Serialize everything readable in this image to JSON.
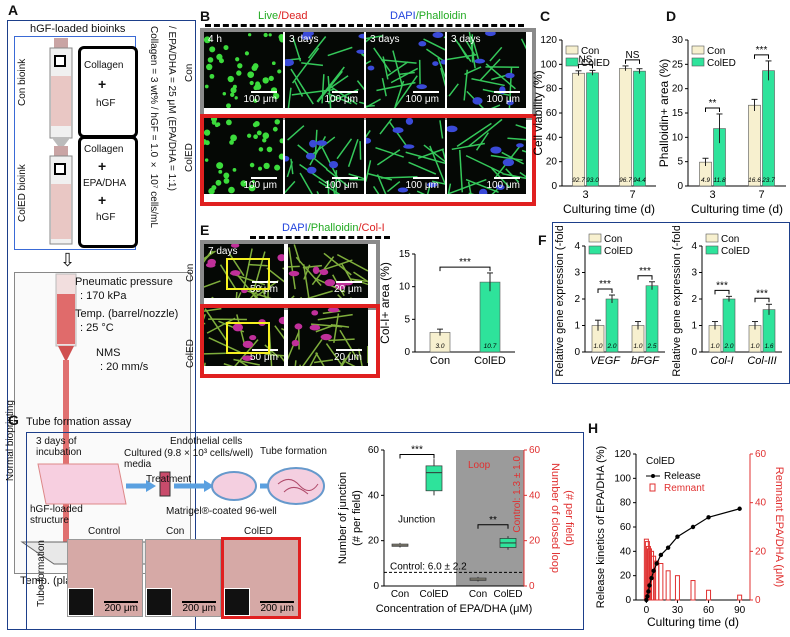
{
  "panels": {
    "A": {
      "label": "A",
      "box_title": "hGF-loaded bioinks",
      "con_bioink": "Con bioink",
      "coled_bioink": "ColED bioink",
      "collagen": "Collagen",
      "hgf": "hGF",
      "epa_dha": "EPA/DHA",
      "plus": "+",
      "vertical_text_1": "Collagen = 3 wt% / hGF = 1.0 × 10⁷ cells/mL",
      "vertical_text_2": "/ EPA/DHA = 25 μM (EPA/DHA = 1:1)",
      "normal_bioprinting": "Normal bioprinting",
      "pneumatic": "Pneumatic pressure",
      "pneumatic_val": ": 170 kPa",
      "temp_barrel": "Temp. (barrel/nozzle)",
      "temp_barrel_val": ": 25 °C",
      "nms": "NMS",
      "nms_val": ": 20 mm/s",
      "temp_plate": "Temp. (plate) : 35-38 °C"
    },
    "B": {
      "label": "B",
      "header_live": "Live",
      "header_dead": "/Dead",
      "header_dapi": "DAPI",
      "header_phalloidin": "/Phalloidin",
      "row_con": "Con",
      "row_coled": "ColED",
      "times": [
        "4 h",
        "3 days",
        "3 days",
        "3 days"
      ],
      "scale": "100 μm"
    },
    "C": {
      "label": "C",
      "legend": [
        "Con",
        "ColED"
      ],
      "ylabel": "Cell viability (%)",
      "xlabel": "Culturing time (d)",
      "sig": [
        "NS",
        "NS"
      ]
    },
    "D": {
      "label": "D",
      "legend": [
        "Con",
        "ColED"
      ],
      "ylabel": "Phalloidin+ area (%)",
      "xlabel": "Culturing time (d)",
      "sig": [
        "**",
        "***"
      ]
    },
    "E": {
      "label": "E",
      "header_dapi": "DAPI",
      "header_phalloidin": "/Phalloidin",
      "header_col": "/Col-I",
      "time": "7 days",
      "row_con": "Con",
      "row_coled": "ColED",
      "scale_50": "50 μm",
      "scale_20": "20 μm",
      "ylabel": "Col-I+ area (%)",
      "sig": "***"
    },
    "F": {
      "label": "F",
      "legend": [
        "Con",
        "ColED"
      ],
      "ylabel": "Relative gene expression (-fold)",
      "sig": "***"
    },
    "G": {
      "label": "G",
      "title": "Tube formation assay",
      "step1": "3 days of incubation",
      "step2": "Cultured media",
      "step3": "Endothelial cells",
      "step3b": "(9.8 × 10³ cells/well)",
      "treatment": "Treatment",
      "tube_formation": "Tube formation",
      "structure": "hGF-loaded structure",
      "matrigel": "Matrigel®-coated 96-well",
      "photo_labels": [
        "Control",
        "Con",
        "ColED"
      ],
      "tube_side": "Tube formation",
      "scale": "200 μm",
      "ylabel_left": "Number of junction",
      "ylabel_left2": "(# per field)",
      "ylabel_right": "Number of closed loop",
      "ylabel_right2": "(# per field)",
      "junction": "Junction",
      "loop": "Loop",
      "control_junction": "Control: 6.0 ± 2.2",
      "control_loop": "Control: 1.3 ± 1.0",
      "xlabel": "Concentration of EPA/DHA (μM)",
      "sig1": "***",
      "sig2": "**"
    },
    "H": {
      "label": "H",
      "series_label": "ColED",
      "legend": [
        "Release",
        "Remnant"
      ],
      "ylabel_left": "Release kinetics of EPA/DHA (%)",
      "ylabel_right": "Remnant EPA/DHA (μM)",
      "xlabel": "Culturing time (d)"
    }
  },
  "colors": {
    "con": "#f7f0cf",
    "coled": "#2ee39b",
    "red_frame": "#e02020",
    "gray_frame": "#8a8a8a",
    "loop_red": "#e03030"
  },
  "chart_data": [
    {
      "id": "C",
      "type": "bar",
      "categories": [
        "3",
        "7"
      ],
      "series": [
        {
          "name": "Con",
          "values": [
            92.7,
            96.7
          ]
        },
        {
          "name": "ColED",
          "values": [
            93.0,
            94.4
          ]
        }
      ],
      "errors": [
        [
          2,
          2
        ],
        [
          2,
          2
        ]
      ],
      "value_labels": [
        [
          "92.7",
          "96.7"
        ],
        [
          "93.0",
          "94.4"
        ]
      ],
      "ylim": [
        0,
        120
      ],
      "yticks": [
        0,
        20,
        40,
        60,
        80,
        100,
        120
      ]
    },
    {
      "id": "D",
      "type": "bar",
      "categories": [
        "3",
        "7"
      ],
      "series": [
        {
          "name": "Con",
          "values": [
            4.9,
            16.6
          ]
        },
        {
          "name": "ColED",
          "values": [
            11.8,
            23.7
          ]
        }
      ],
      "errors": [
        [
          0.8,
          1.2
        ],
        [
          3.0,
          2.0
        ]
      ],
      "value_labels": [
        [
          "4.9",
          "16.6"
        ],
        [
          "11.8",
          "23.7"
        ]
      ],
      "ylim": [
        0,
        30
      ],
      "yticks": [
        0,
        5,
        10,
        15,
        20,
        25,
        30
      ]
    },
    {
      "id": "E",
      "type": "bar",
      "categories": [
        "Con",
        "ColED"
      ],
      "values": [
        3.0,
        10.7
      ],
      "errors": [
        0.5,
        1.4
      ],
      "value_labels": [
        "3.0",
        "10.7"
      ],
      "ylim": [
        0,
        15
      ],
      "yticks": [
        0,
        5,
        10,
        15
      ]
    },
    {
      "id": "F1",
      "type": "bar",
      "categories": [
        "VEGF",
        "bFGF"
      ],
      "series": [
        {
          "name": "Con",
          "values": [
            1.0,
            1.0
          ]
        },
        {
          "name": "ColED",
          "values": [
            2.0,
            2.5
          ]
        }
      ],
      "errors": [
        [
          0.2,
          0.15
        ],
        [
          0.15,
          0.15
        ]
      ],
      "value_labels": [
        [
          "1.0",
          "1.0"
        ],
        [
          "2.0",
          "2.5"
        ]
      ],
      "ylim": [
        0,
        4
      ],
      "yticks": [
        0,
        1,
        2,
        3,
        4
      ]
    },
    {
      "id": "F2",
      "type": "bar",
      "categories": [
        "Col-I",
        "Col-III"
      ],
      "series": [
        {
          "name": "Con",
          "values": [
            1.0,
            1.0
          ]
        },
        {
          "name": "ColED",
          "values": [
            2.0,
            1.6
          ]
        }
      ],
      "errors": [
        [
          0.15,
          0.15
        ],
        [
          0.1,
          0.2
        ]
      ],
      "value_labels": [
        [
          "1.0",
          "1.0"
        ],
        [
          "2.0",
          "1.6"
        ]
      ],
      "ylim": [
        0,
        4
      ],
      "yticks": [
        0,
        1,
        2,
        3,
        4
      ]
    },
    {
      "id": "G",
      "type": "box",
      "categories": [
        "Con",
        "ColED",
        "Con",
        "ColED"
      ],
      "left_ylim": [
        0,
        60
      ],
      "left_yticks": [
        0,
        20,
        40,
        60
      ],
      "right_ylim": [
        0,
        60
      ],
      "right_yticks": [
        0,
        20,
        40,
        60
      ],
      "junction": [
        {
          "min": 17,
          "q1": 17.5,
          "med": 18,
          "q3": 18.5,
          "max": 19
        },
        {
          "min": 40,
          "q1": 42,
          "med": 50,
          "q3": 53,
          "max": 56
        }
      ],
      "loop": [
        {
          "min": 2,
          "q1": 2.5,
          "med": 3,
          "q3": 3.5,
          "max": 4
        },
        {
          "min": 16,
          "q1": 17,
          "med": 19,
          "q3": 21,
          "max": 22
        }
      ],
      "control_junction": 6.0
    },
    {
      "id": "H",
      "type": "line",
      "x": [
        0,
        1,
        2,
        3,
        5,
        7,
        10,
        14,
        21,
        30,
        45,
        60,
        90
      ],
      "release": [
        0,
        3,
        7,
        12,
        18,
        24,
        30,
        37,
        43,
        52,
        60,
        68,
        75
      ],
      "remnant": [
        25,
        24,
        22,
        21,
        20,
        18,
        16,
        15,
        12,
        10,
        8,
        4,
        2
      ],
      "left_ylim": [
        0,
        120
      ],
      "left_yticks": [
        0,
        20,
        40,
        60,
        80,
        100,
        120
      ],
      "right_ylim": [
        0,
        60
      ],
      "right_yticks": [
        0,
        20,
        40,
        60
      ],
      "xticks": [
        0,
        30,
        60,
        90
      ],
      "xlim": [
        -10,
        100
      ]
    }
  ]
}
